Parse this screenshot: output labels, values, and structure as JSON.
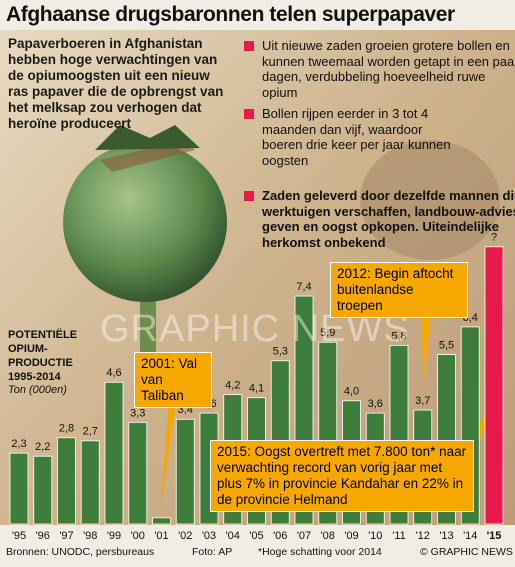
{
  "chart_data": {
    "type": "bar",
    "title": "Afghaanse drugsbaronnen telen superpapaver",
    "subtitle": "Papaverboeren in Afghanistan hebben hoge verwachtingen van de opiumoogsten uit een nieuw ras papaver die de opbrengst van het melksap zou verhogen dat heroïne produceert",
    "bullets": [
      "Uit nieuwe zaden groeien grotere bollen en kunnen tweemaal worden getapt in een paar dagen, verdubbeling hoeveelheid ruwe opium",
      "Bollen rijpen eerder in 3 tot 4 maanden dan vijf, waardoor boeren drie keer per jaar kunnen oogsten",
      "Zaden geleverd door dezelfde mannen die werktuigen verschaffen, landbouw-advies geven en oogst opkopen. Uiteindelijke herkomst onbekend"
    ],
    "y_label": "POTENTIËLE OPIUM-PRODUCTIE 1995-2014",
    "y_unit": "Ton (000en)",
    "categories": [
      "'95",
      "'96",
      "'97",
      "'98",
      "'99",
      "'00",
      "'01",
      "'02",
      "'03",
      "'04",
      "'05",
      "'06",
      "'07",
      "'08",
      "'09",
      "'10",
      "'11",
      "'12",
      "'13",
      "'14",
      "'15"
    ],
    "values": [
      2.3,
      2.2,
      2.8,
      2.7,
      4.6,
      3.3,
      0.2,
      3.4,
      3.6,
      4.2,
      4.1,
      5.3,
      7.4,
      5.9,
      4.0,
      3.6,
      5.8,
      3.7,
      5.5,
      6.4,
      9.0
    ],
    "value_labels": [
      "2,3",
      "2,2",
      "2,8",
      "2,7",
      "4,6",
      "3,3",
      null,
      "3,4",
      "3,6",
      "4,2",
      "4,1",
      "5,3",
      "7,4",
      "5,9",
      "4,0",
      "3,6",
      "5,8",
      "3,7",
      "5,5",
      "6,4",
      "?"
    ],
    "colors": [
      "#3f7d3c",
      "#3f7d3c",
      "#3f7d3c",
      "#3f7d3c",
      "#3f7d3c",
      "#3f7d3c",
      "#3f7d3c",
      "#3f7d3c",
      "#3f7d3c",
      "#3f7d3c",
      "#3f7d3c",
      "#3f7d3c",
      "#3f7d3c",
      "#3f7d3c",
      "#3f7d3c",
      "#3f7d3c",
      "#3f7d3c",
      "#3f7d3c",
      "#3f7d3c",
      "#3f7d3c",
      "#e8194b"
    ],
    "annotations": [
      "2001: Val van Taliban",
      "2012: Begin aftocht buitenlandse troepen",
      "2015: Oogst overtreft met 7.800 ton* naar verwachting record van vorig jaar met plus 7% in provincie Kandahar en 22% in de provincie Helmand"
    ],
    "watermark": "GRAPHIC NEWS",
    "source": "Bronnen: UNODC, persbureaus",
    "photo_credit": "Foto: AP",
    "footnote": "*Hoge schatting voor 2014",
    "credit": "© GRAPHIC NEWS"
  }
}
